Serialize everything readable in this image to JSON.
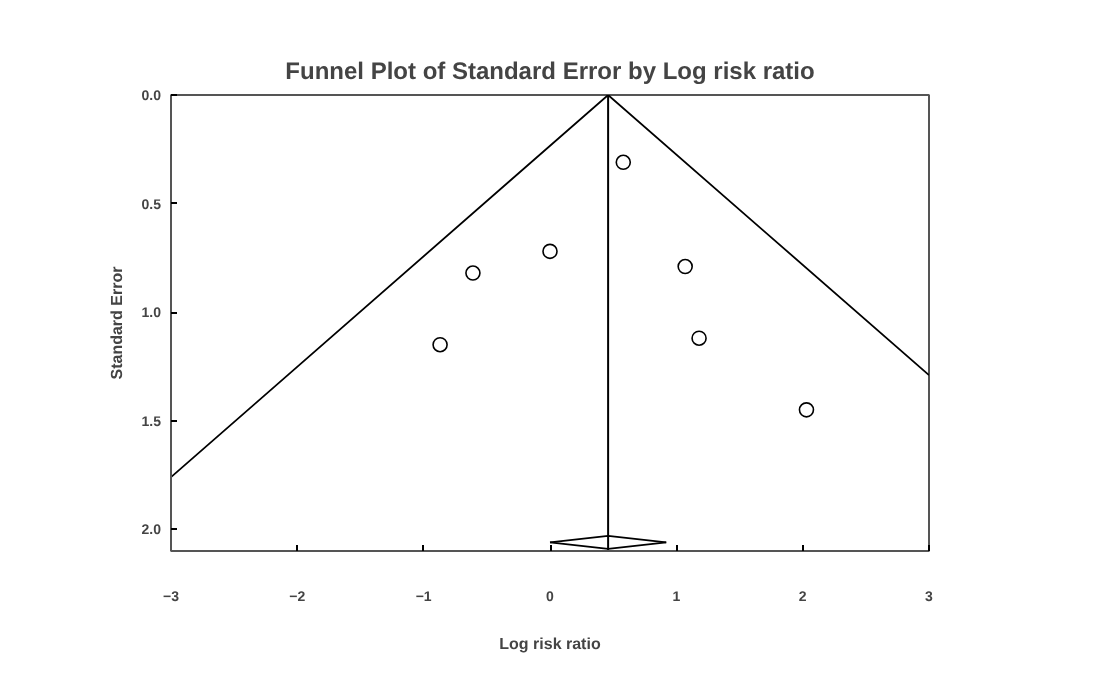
{
  "chart_data": {
    "type": "scatter",
    "title": "Funnel Plot of Standard Error by Log risk ratio",
    "xlabel": "Log risk ratio",
    "ylabel": "Standard Error",
    "xlim": [
      -3,
      3
    ],
    "xticks": [
      -3,
      -2,
      -1,
      0,
      1,
      2,
      3
    ],
    "ylim": [
      2.1,
      0.0
    ],
    "yticks": [
      {
        "value": 0.0,
        "label": "0.0"
      },
      0.5,
      {
        "value": 1.0,
        "label": "1.0"
      },
      1.5,
      {
        "value": 2.0,
        "label": "2.0"
      }
    ],
    "grid": false,
    "series": [
      {
        "marker": "circle",
        "color": "#000000",
        "x": [
          -0.87,
          -0.61,
          0.0,
          0.58,
          1.07,
          1.18,
          2.03
        ],
        "values": [
          1.15,
          0.82,
          0.72,
          0.31,
          0.79,
          1.12,
          1.45
        ]
      },
      {
        "type": "line",
        "color": "#000000",
        "x": [
          -3,
          0.46,
          3
        ],
        "values": [
          1.76,
          0.0,
          1.29
        ]
      },
      {
        "type": "line",
        "color": "#000000",
        "x": [
          0.0,
          0.46,
          0.92
        ],
        "values": [
          2.06,
          2.03,
          2.06
        ]
      },
      {
        "type": "line",
        "color": "#000000",
        "x": [
          0.0,
          0.46,
          0.92
        ],
        "values": [
          2.06,
          2.09,
          2.06
        ]
      }
    ],
    "ref_lines": [
      {
        "axis": "x",
        "value": 0.46,
        "color": "#000000"
      }
    ]
  }
}
